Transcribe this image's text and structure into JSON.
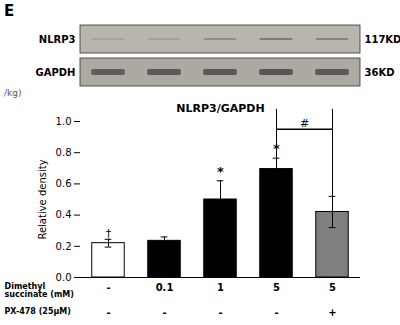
{
  "chart_data": {
    "type": "bar",
    "title": "NLRP3/GAPDH",
    "ylabel": "Relative density",
    "values": [
      0.22,
      0.235,
      0.5,
      0.695,
      0.42
    ],
    "errors": [
      0.025,
      0.025,
      0.12,
      0.07,
      0.1
    ],
    "colors": [
      "white",
      "black",
      "black",
      "black",
      "gray"
    ],
    "edge_colors": [
      "black",
      "black",
      "black",
      "black",
      "black"
    ],
    "ylim": [
      0,
      1.0
    ],
    "yticks": [
      {
        "value": 0.0,
        "label": "0.0"
      },
      0.2,
      0.4,
      0.6,
      0.8,
      {
        "value": 1.0,
        "label": "1.0"
      }
    ],
    "grid": false,
    "x_label_rows": [
      {
        "label": "Dimethyl\nsuccinate (mM)",
        "values": [
          "-",
          "0.1",
          "1",
          "5",
          "5"
        ]
      },
      {
        "label": "PX-478 (25μM)",
        "values": [
          "-",
          "-",
          "-",
          "-",
          "+"
        ]
      }
    ],
    "star_bars": [
      2,
      3
    ],
    "star_label": "*",
    "dagger_bar": 0,
    "dagger_label": "†",
    "bracket": {
      "bars": [
        3,
        4
      ],
      "y": 0.95,
      "label": "#"
    },
    "panel_label": "E",
    "extra_text": "/kg)",
    "blot": {
      "rows": [
        {
          "label": "NLRP3",
          "size": "117KD",
          "color": "#b8b4ae",
          "intensities": [
            0.5,
            0.52,
            0.62,
            0.72,
            0.68
          ]
        },
        {
          "label": "GAPDH",
          "size": "36KD",
          "color": "#aca8a2",
          "intensities": [
            0.88,
            0.9,
            0.91,
            0.92,
            0.9
          ]
        }
      ]
    }
  }
}
